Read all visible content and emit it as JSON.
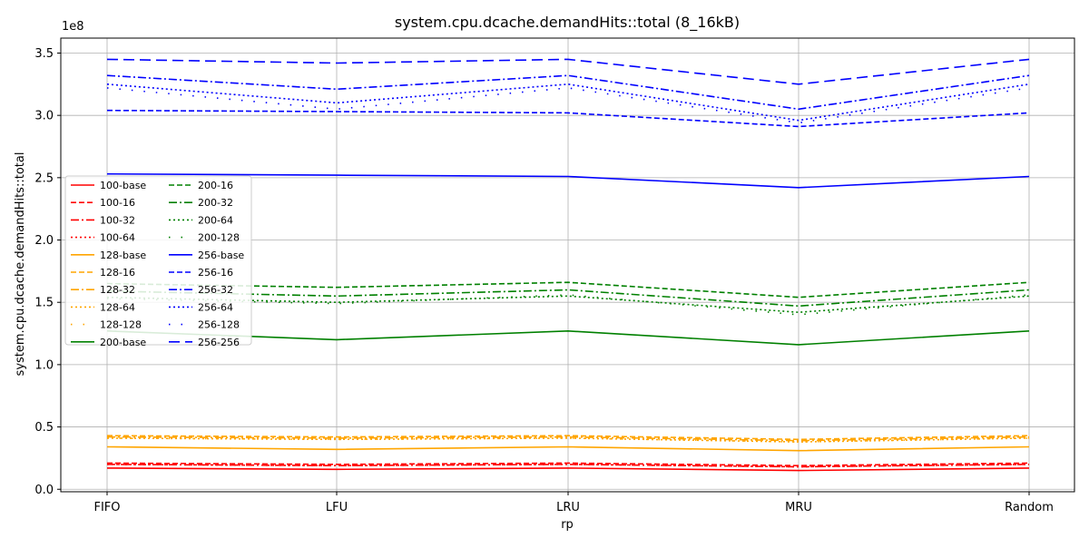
{
  "chart_data": {
    "type": "line",
    "title": "system.cpu.dcache.demandHits::total (8_16kB)",
    "xlabel": "rp",
    "ylabel": "system.cpu.dcache.demandHits::total",
    "y_scale_label": "1e8",
    "categories": [
      "FIFO",
      "LFU",
      "LRU",
      "MRU",
      "Random"
    ],
    "ylim": [
      -0.02,
      3.62
    ],
    "y_ticks": [
      0.0,
      0.5,
      1.0,
      1.5,
      2.0,
      2.5,
      3.0,
      3.5
    ],
    "y_tick_labels": [
      "0.0",
      "0.5",
      "1.0",
      "1.5",
      "2.0",
      "2.5",
      "3.0",
      "3.5"
    ],
    "grid": true,
    "legend_placement": "center-left",
    "series": [
      {
        "name": "100-base",
        "color": "#ff0000",
        "dash": "solid",
        "values": [
          0.17,
          0.16,
          0.17,
          0.15,
          0.17
        ]
      },
      {
        "name": "100-16",
        "color": "#ff0000",
        "dash": "dashed",
        "values": [
          0.21,
          0.2,
          0.21,
          0.19,
          0.21
        ]
      },
      {
        "name": "100-32",
        "color": "#ff0000",
        "dash": "dashdot",
        "values": [
          0.2,
          0.19,
          0.2,
          0.18,
          0.2
        ]
      },
      {
        "name": "100-64",
        "color": "#ff0000",
        "dash": "dotted",
        "values": [
          0.2,
          0.19,
          0.2,
          0.18,
          0.2
        ]
      },
      {
        "name": "128-base",
        "color": "#ffa500",
        "dash": "solid",
        "values": [
          0.34,
          0.32,
          0.34,
          0.31,
          0.34
        ]
      },
      {
        "name": "128-16",
        "color": "#ffa500",
        "dash": "dashed",
        "values": [
          0.43,
          0.42,
          0.43,
          0.4,
          0.43
        ]
      },
      {
        "name": "128-32",
        "color": "#ffa500",
        "dash": "dashdot",
        "values": [
          0.42,
          0.41,
          0.42,
          0.39,
          0.42
        ]
      },
      {
        "name": "128-64",
        "color": "#ffa500",
        "dash": "dotted",
        "values": [
          0.41,
          0.4,
          0.41,
          0.38,
          0.41
        ]
      },
      {
        "name": "128-128",
        "color": "#ffa500",
        "dash": "sparse",
        "values": [
          0.41,
          0.4,
          0.41,
          0.38,
          0.41
        ]
      },
      {
        "name": "200-base",
        "color": "#008000",
        "dash": "solid",
        "values": [
          1.27,
          1.2,
          1.27,
          1.16,
          1.27
        ]
      },
      {
        "name": "200-16",
        "color": "#008000",
        "dash": "dashed",
        "values": [
          1.65,
          1.62,
          1.66,
          1.54,
          1.66
        ]
      },
      {
        "name": "200-32",
        "color": "#008000",
        "dash": "dashdot",
        "values": [
          1.59,
          1.55,
          1.6,
          1.47,
          1.6
        ]
      },
      {
        "name": "200-64",
        "color": "#008000",
        "dash": "dotted",
        "values": [
          1.54,
          1.5,
          1.55,
          1.42,
          1.55
        ]
      },
      {
        "name": "200-128",
        "color": "#008000",
        "dash": "sparse",
        "values": [
          1.53,
          1.49,
          1.56,
          1.4,
          1.56
        ]
      },
      {
        "name": "256-base",
        "color": "#0000ff",
        "dash": "solid",
        "values": [
          2.53,
          2.52,
          2.51,
          2.42,
          2.51
        ]
      },
      {
        "name": "256-16",
        "color": "#0000ff",
        "dash": "dashed",
        "values": [
          3.04,
          3.03,
          3.02,
          2.91,
          3.02
        ]
      },
      {
        "name": "256-32",
        "color": "#0000ff",
        "dash": "dashdot",
        "values": [
          3.32,
          3.21,
          3.32,
          3.05,
          3.32
        ]
      },
      {
        "name": "256-64",
        "color": "#0000ff",
        "dash": "dotted",
        "values": [
          3.25,
          3.1,
          3.25,
          2.96,
          3.25
        ]
      },
      {
        "name": "256-128",
        "color": "#0000ff",
        "dash": "sparse",
        "values": [
          3.22,
          3.05,
          3.22,
          2.94,
          3.22
        ]
      },
      {
        "name": "256-256",
        "color": "#0000ff",
        "dash": "longdash",
        "values": [
          3.45,
          3.42,
          3.45,
          3.25,
          3.45
        ]
      }
    ]
  }
}
